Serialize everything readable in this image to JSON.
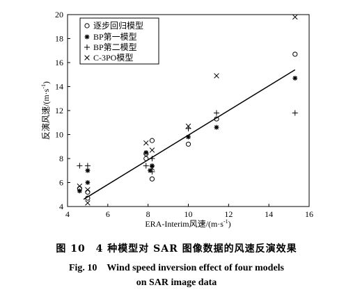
{
  "chart_data": {
    "type": "scatter",
    "xlabel": "ERA-Interim风速/(m·s",
    "xlabel_sup": "-1",
    "xlabel_close": ")",
    "ylabel": "反演风速/(m·s",
    "ylabel_sup": "-1",
    "ylabel_close": ")",
    "xlim": [
      4,
      16
    ],
    "ylim": [
      4,
      20
    ],
    "xticks": [
      "4",
      "6",
      "8",
      "10",
      "12",
      "14",
      "16"
    ],
    "yticks": [
      "4",
      "6",
      "8",
      "10",
      "12",
      "14",
      "16",
      "18",
      "20"
    ],
    "grid": false,
    "legend_position": "top-left",
    "series": [
      {
        "name": "逐步回归模型",
        "marker": "circle",
        "points": [
          [
            4.6,
            5.5
          ],
          [
            5.0,
            4.7
          ],
          [
            5.0,
            5.2
          ],
          [
            7.9,
            8.0
          ],
          [
            7.9,
            8.4
          ],
          [
            8.2,
            9.5
          ],
          [
            8.2,
            6.3
          ],
          [
            10.0,
            9.2
          ],
          [
            11.4,
            11.3
          ],
          [
            15.3,
            16.7
          ]
        ]
      },
      {
        "name": "BP第一模型",
        "marker": "asterisk",
        "points": [
          [
            4.6,
            5.3
          ],
          [
            5.0,
            6.0
          ],
          [
            5.0,
            7.0
          ],
          [
            7.9,
            8.5
          ],
          [
            8.1,
            7.0
          ],
          [
            8.2,
            7.4
          ],
          [
            10.0,
            9.8
          ],
          [
            11.4,
            10.6
          ],
          [
            15.3,
            14.7
          ]
        ]
      },
      {
        "name": "BP第二模型",
        "marker": "plus",
        "points": [
          [
            4.6,
            7.4
          ],
          [
            5.0,
            7.4
          ],
          [
            7.9,
            7.4
          ],
          [
            8.2,
            8.0
          ],
          [
            8.2,
            6.9
          ],
          [
            10.0,
            10.5
          ],
          [
            11.4,
            11.8
          ],
          [
            15.3,
            11.8
          ]
        ]
      },
      {
        "name": "C-3PO模型",
        "marker": "x",
        "points": [
          [
            4.6,
            5.7
          ],
          [
            5.0,
            4.3
          ],
          [
            5.0,
            5.4
          ],
          [
            7.9,
            9.3
          ],
          [
            8.2,
            8.7
          ],
          [
            8.2,
            7.2
          ],
          [
            10.0,
            10.7
          ],
          [
            11.4,
            14.9
          ],
          [
            15.3,
            19.8
          ]
        ]
      }
    ],
    "fit_line": {
      "x": [
        4.8,
        15.3
      ],
      "y": [
        4.6,
        15.4
      ]
    }
  },
  "caption": {
    "zh": "图 10　4 种模型对 SAR 图像数据的风速反演效果",
    "en_line1": "Fig. 10　Wind speed inversion effect of four models",
    "en_line2": "on SAR image data"
  }
}
